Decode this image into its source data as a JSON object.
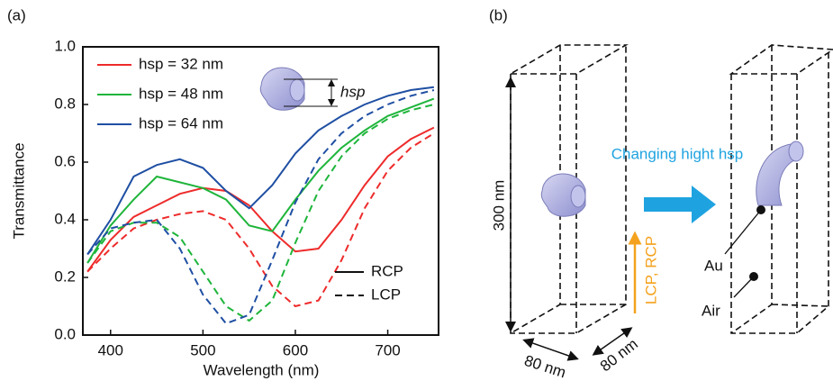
{
  "panel_labels": [
    "(a)",
    "(b)"
  ],
  "chart_data": {
    "type": "line",
    "x_label": "Wavelength (nm)",
    "y_label": "Transmittance",
    "x": [
      375,
      400,
      425,
      450,
      475,
      500,
      525,
      550,
      575,
      600,
      625,
      650,
      675,
      700,
      725,
      750
    ],
    "series": [
      {
        "name": "hsp = 32 nm",
        "color": "#ee2b2b",
        "rcp": [
          0.22,
          0.33,
          0.41,
          0.45,
          0.49,
          0.51,
          0.5,
          0.45,
          0.36,
          0.29,
          0.3,
          0.4,
          0.52,
          0.62,
          0.68,
          0.72
        ],
        "lcp": [
          0.22,
          0.3,
          0.37,
          0.4,
          0.42,
          0.43,
          0.4,
          0.3,
          0.17,
          0.1,
          0.12,
          0.26,
          0.44,
          0.57,
          0.65,
          0.7
        ]
      },
      {
        "name": "hsp = 48 nm",
        "color": "#1fb53b",
        "rcp": [
          0.25,
          0.38,
          0.47,
          0.55,
          0.53,
          0.51,
          0.47,
          0.38,
          0.36,
          0.47,
          0.57,
          0.65,
          0.71,
          0.76,
          0.79,
          0.82
        ],
        "lcp": [
          0.25,
          0.36,
          0.39,
          0.39,
          0.34,
          0.22,
          0.1,
          0.05,
          0.12,
          0.32,
          0.5,
          0.62,
          0.7,
          0.75,
          0.78,
          0.8
        ]
      },
      {
        "name": "hsp = 64 nm",
        "color": "#1f4fa3",
        "rcp": [
          0.28,
          0.4,
          0.55,
          0.59,
          0.61,
          0.58,
          0.5,
          0.44,
          0.52,
          0.63,
          0.71,
          0.76,
          0.8,
          0.83,
          0.85,
          0.86
        ],
        "lcp": [
          0.28,
          0.37,
          0.39,
          0.4,
          0.3,
          0.14,
          0.04,
          0.07,
          0.26,
          0.46,
          0.61,
          0.7,
          0.76,
          0.8,
          0.83,
          0.85
        ]
      }
    ],
    "style_legend": [
      "RCP",
      "LCP"
    ],
    "inset_label": "hsp",
    "xlim": [
      370,
      755
    ],
    "ylim": [
      0,
      1
    ],
    "xticks": [
      400,
      500,
      600,
      700
    ],
    "yticks": [
      {
        "value": 0,
        "label": "0.0"
      },
      {
        "value": 0.2,
        "label": "0.2"
      },
      {
        "value": 0.4,
        "label": "0.4"
      },
      {
        "value": 0.6,
        "label": "0.6"
      },
      {
        "value": 0.8,
        "label": "0.8"
      },
      {
        "value": 1,
        "label": "1.0"
      }
    ]
  },
  "diagram": {
    "height_label": "300 nm",
    "width_label": "80 nm",
    "depth_label": "80 nm",
    "light_label": "LCP, RCP",
    "change_label": "Changing hight hsp",
    "au_label": "Au",
    "air_label": "Air"
  }
}
